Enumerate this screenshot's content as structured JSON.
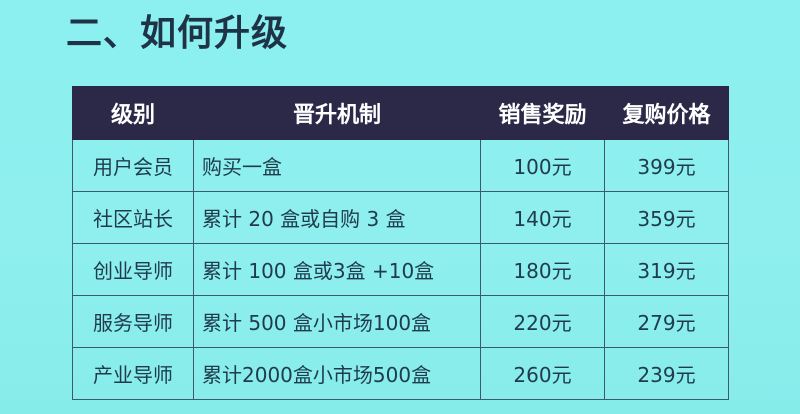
{
  "title": "二、如何升级",
  "table": {
    "headers": [
      "级别",
      "晋升机制",
      "销售奖励",
      "复购价格"
    ],
    "rows": [
      [
        "用户会员",
        "购买一盒",
        "100元",
        "399元"
      ],
      [
        "社区站长",
        "累计 20 盒或自购 3 盒",
        "140元",
        "359元"
      ],
      [
        "创业导师",
        "累计 100 盒或3盒 +10盒",
        "180元",
        "319元"
      ],
      [
        "服务导师",
        "累计 500 盒小市场100盒",
        "220元",
        "279元"
      ],
      [
        "产业导师",
        "累计2000盒小市场500盒",
        "260元",
        "239元"
      ]
    ]
  },
  "colors": {
    "background": "#8cf0f0",
    "header": "#2c2847",
    "text": "#203c4c"
  }
}
